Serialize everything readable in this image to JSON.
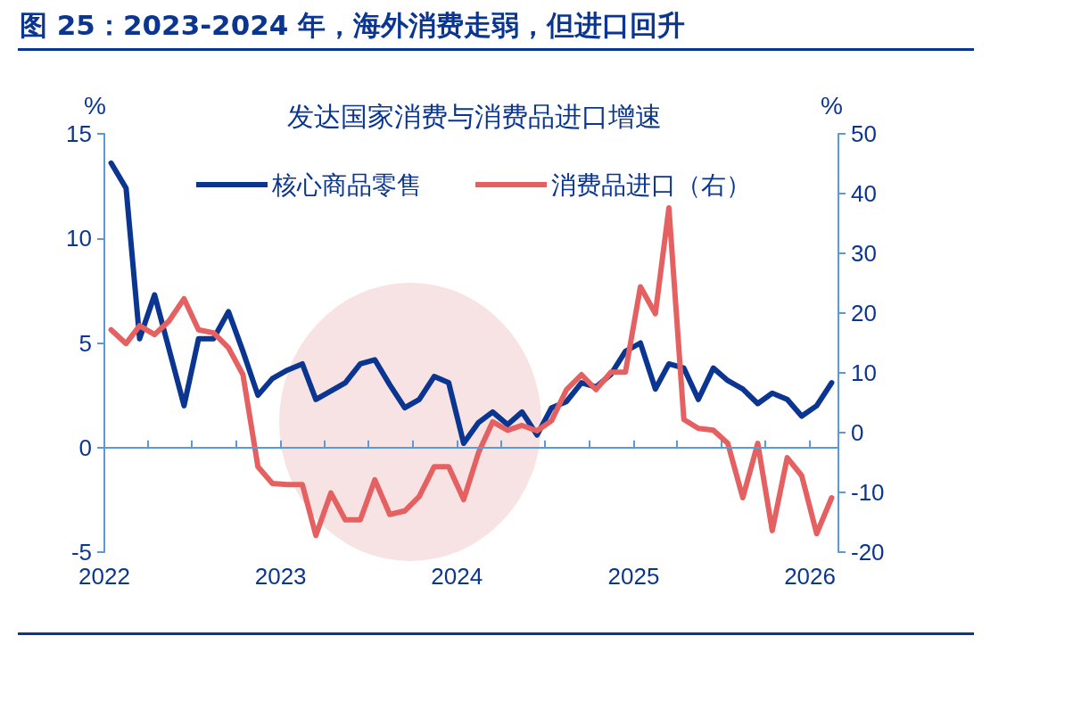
{
  "chart_data": {
    "type": "line",
    "title": "图 25：2023-2024 年，海外消费走弱，但进口回升",
    "subtitle": "发达国家消费与消费品进口增速",
    "ylabel": "%",
    "y2label": "%",
    "x": [
      "2022-01-15",
      "2022-02-15",
      "2022-03-15",
      "2022-04-15",
      "2022-05-15",
      "2022-06-15",
      "2022-07-15",
      "2022-08-15",
      "2022-09-15",
      "2022-10-15",
      "2022-11-15",
      "2022-12-15",
      "2023-01-15",
      "2023-02-15",
      "2023-03-15",
      "2023-04-15",
      "2023-05-15",
      "2023-06-15",
      "2023-07-15",
      "2023-08-15",
      "2023-09-15",
      "2023-10-15",
      "2023-11-15",
      "2023-12-15",
      "2024-01-15",
      "2024-02-15",
      "2024-03-15",
      "2024-04-15",
      "2024-05-15",
      "2024-06-15",
      "2024-07-15",
      "2024-08-15",
      "2024-09-15",
      "2024-10-15",
      "2024-11-15",
      "2024-12-15",
      "2025-01-15",
      "2025-02-15",
      "2025-03-15",
      "2025-04-15",
      "2025-05-15",
      "2025-06-15",
      "2025-07-15",
      "2025-08-15",
      "2025-09-15",
      "2025-10-15",
      "2025-11-15",
      "2025-12-15",
      "2026-01-15",
      "2026-02-15"
    ],
    "series": [
      {
        "name": "核心商品零售",
        "color": "#0a3591",
        "values": [
          13.6,
          12.4,
          5.2,
          7.3,
          4.7,
          2.0,
          5.2,
          5.2,
          6.5,
          4.6,
          2.5,
          3.3,
          3.7,
          4.0,
          2.3,
          2.7,
          3.1,
          4.0,
          4.2,
          3.0,
          1.9,
          2.3,
          3.4,
          3.1,
          0.2,
          1.2,
          1.7,
          1.1,
          1.7,
          0.6,
          1.9,
          2.2,
          3.1,
          2.9,
          3.5,
          4.6,
          5.0,
          2.8,
          4.0,
          3.8,
          2.3,
          3.8,
          3.2,
          2.8,
          2.1,
          2.6,
          2.3,
          1.5,
          2.0,
          3.1
        ]
      },
      {
        "name": "消费品进口（右）",
        "color": "#e56060",
        "axis": "y2",
        "values": [
          17.2,
          14.9,
          17.9,
          16.4,
          18.7,
          22.4,
          17.2,
          16.7,
          14.2,
          9.7,
          -5.7,
          -8.5,
          -8.7,
          -8.7,
          -17.2,
          -10.1,
          -14.6,
          -14.6,
          -7.9,
          -13.7,
          -13.1,
          -10.7,
          -5.7,
          -5.7,
          -11.2,
          -3.3,
          1.8,
          0.4,
          1.2,
          0.3,
          2.0,
          7.2,
          9.7,
          7.2,
          10.1,
          10.1,
          24.4,
          19.9,
          37.6,
          2.2,
          0.7,
          0.4,
          -1.8,
          -10.9,
          -1.8,
          -16.4,
          -4.2,
          -7.2,
          -16.9,
          -10.9
        ]
      }
    ],
    "xlim": [
      "2022-01-01",
      "2026-03-01"
    ],
    "xticks": [
      {
        "value": "2022",
        "label": "2022"
      },
      {
        "value": "2022-04",
        "label": null
      },
      {
        "value": "2022-07",
        "label": null
      },
      {
        "value": "2022-10",
        "label": null
      },
      {
        "value": "2023",
        "label": "2023"
      },
      {
        "value": "2023-04",
        "label": null
      },
      {
        "value": "2023-07",
        "label": null
      },
      {
        "value": "2023-10",
        "label": null
      },
      {
        "value": "2024",
        "label": "2024"
      },
      {
        "value": "2024-04",
        "label": null
      },
      {
        "value": "2024-07",
        "label": null
      },
      {
        "value": "2024-10",
        "label": null
      },
      {
        "value": "2025",
        "label": "2025"
      },
      {
        "value": "2025-04",
        "label": null
      },
      {
        "value": "2025-07",
        "label": null
      },
      {
        "value": "2025-10",
        "label": null
      },
      {
        "value": "2026",
        "label": "2026"
      }
    ],
    "ylim": [
      -5,
      15
    ],
    "yticks": [
      -5,
      0,
      5,
      10,
      15
    ],
    "y2lim": [
      -20,
      50
    ],
    "y2ticks": [
      -20,
      -10,
      0,
      10,
      20,
      30,
      40,
      50
    ],
    "ref_lines": [
      {
        "axis": "y",
        "value": 0,
        "color": "#5b9bd5"
      }
    ],
    "legend": "top",
    "grid": false,
    "marker": "none",
    "line_style": "solid"
  }
}
